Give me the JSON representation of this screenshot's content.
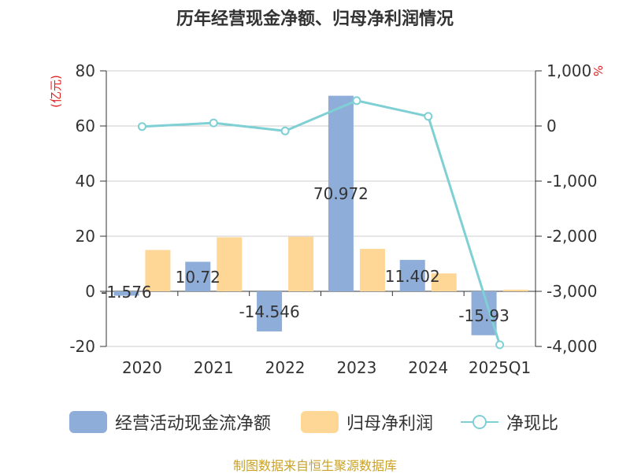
{
  "chart_data": {
    "type": "bar",
    "title": "历年经营现金净额、归母净利润情况",
    "categories": [
      "2020",
      "2021",
      "2022",
      "2023",
      "2024",
      "2025Q1"
    ],
    "series": [
      {
        "name": "经营活动现金流净额",
        "kind": "bar",
        "axis": "left",
        "color": "#8eadd9",
        "values": [
          -1.576,
          10.72,
          -14.546,
          70.972,
          11.402,
          -15.93
        ],
        "labels": [
          "-1.576",
          "10.72",
          "-14.546",
          "70.972",
          "11.402",
          "-15.93"
        ]
      },
      {
        "name": "归母净利润",
        "kind": "bar",
        "axis": "left",
        "color": "#fed695",
        "values": [
          15.0,
          19.6,
          19.8,
          15.4,
          6.5,
          0.6
        ]
      },
      {
        "name": "净现比",
        "kind": "line",
        "axis": "right",
        "color": "#7fd0d4",
        "values": [
          -10,
          55,
          -90,
          460,
          175,
          -3970
        ]
      }
    ],
    "left_axis": {
      "unit": "(亿元)",
      "ylim": [
        -20,
        80
      ],
      "ticks": [
        80,
        60,
        40,
        20,
        0,
        -20
      ],
      "tick_labels": [
        "80",
        "60",
        "40",
        "20",
        "0",
        "-20"
      ]
    },
    "right_axis": {
      "unit": "%",
      "ylim": [
        -4000,
        1000
      ],
      "ticks": [
        1000,
        0,
        -1000,
        -2000,
        -3000,
        -4000
      ],
      "tick_labels": [
        "1,000",
        "0",
        "-1,000",
        "-2,000",
        "-3,000",
        "-4,000"
      ]
    },
    "legend_position": "bottom"
  },
  "legend": {
    "items": [
      "经营活动现金流净额",
      "归母净利润",
      "净现比"
    ]
  },
  "source": "制图数据来自恒生聚源数据库"
}
